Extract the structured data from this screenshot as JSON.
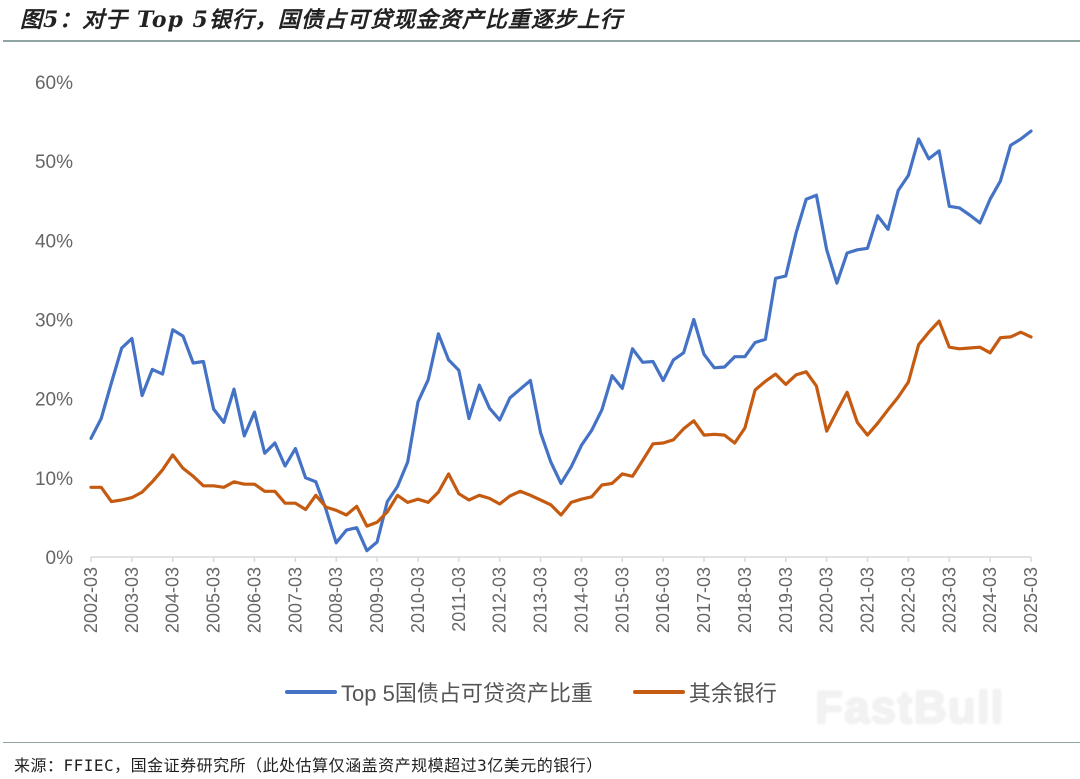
{
  "title": "图5：对于 Top 5银行，国债占可贷现金资产比重逐步上行",
  "source": "来源：FFIEC，国金证券研究所（此处估算仅涵盖资产规模超过3亿美元的银行）",
  "watermark": "FastBull",
  "colors": {
    "top5": "#4472c4",
    "others": "#c55a11",
    "axis": "#d9d9d9",
    "rule": "#8fa5a3"
  },
  "legend": [
    {
      "label": "Top 5国债占可贷资产比重",
      "color": "#4472c4"
    },
    {
      "label": "其余银行",
      "color": "#c55a11"
    }
  ],
  "chart_data": {
    "type": "line",
    "title": "图5：对于 Top 5银行，国债占可贷现金资产比重逐步上行",
    "xlabel": "",
    "ylabel": "",
    "ylim": [
      0,
      60
    ],
    "yticks": [
      "0%",
      "10%",
      "20%",
      "30%",
      "40%",
      "50%",
      "60%"
    ],
    "xtick_labels": [
      "2002-03",
      "2003-03",
      "2004-03",
      "2005-03",
      "2006-03",
      "2007-03",
      "2008-03",
      "2009-03",
      "2010-03",
      "2011-03",
      "2012-03",
      "2013-03",
      "2014-03",
      "2015-03",
      "2016-03",
      "2017-03",
      "2018-03",
      "2019-03",
      "2020-03",
      "2021-03",
      "2022-03",
      "2023-03",
      "2024-03",
      "2025-03"
    ],
    "x_frequency": "quarterly, 2002-03 to 2025-03 (93 points)",
    "grid": false,
    "legend_position": "bottom",
    "series": [
      {
        "name": "Top 5国债占可贷资产比重",
        "color": "#4472c4",
        "values": [
          15.0,
          17.5,
          22.0,
          26.4,
          27.6,
          20.4,
          23.7,
          23.1,
          28.7,
          27.9,
          24.5,
          24.7,
          18.7,
          17.0,
          21.2,
          15.3,
          18.3,
          13.1,
          14.4,
          11.5,
          13.7,
          10.0,
          9.5,
          6.0,
          1.8,
          3.4,
          3.7,
          0.8,
          1.9,
          7.0,
          8.9,
          12.0,
          19.6,
          22.4,
          28.2,
          24.9,
          23.6,
          17.5,
          21.7,
          18.8,
          17.3,
          20.1,
          21.2,
          22.3,
          15.7,
          12.0,
          9.3,
          11.4,
          14.1,
          16.0,
          18.6,
          22.9,
          21.3,
          26.3,
          24.6,
          24.7,
          22.3,
          24.9,
          25.8,
          30.0,
          25.6,
          23.9,
          24.0,
          25.3,
          25.3,
          27.1,
          27.5,
          35.2,
          35.5,
          40.9,
          45.2,
          45.7,
          38.8,
          34.6,
          38.4,
          38.8,
          39.0,
          43.1,
          41.4,
          46.3,
          48.2,
          52.8,
          50.3,
          51.3,
          44.3,
          44.1,
          43.2,
          42.2,
          45.2,
          47.5,
          52.0,
          52.8,
          53.8
        ]
      },
      {
        "name": "其余银行",
        "color": "#c55a11",
        "values": [
          8.8,
          8.8,
          7.0,
          7.2,
          7.5,
          8.2,
          9.5,
          11.0,
          12.9,
          11.2,
          10.2,
          9.0,
          9.0,
          8.8,
          9.5,
          9.2,
          9.2,
          8.3,
          8.3,
          6.8,
          6.8,
          6.0,
          7.8,
          6.3,
          5.9,
          5.3,
          6.4,
          3.9,
          4.4,
          5.7,
          7.8,
          6.9,
          7.3,
          6.9,
          8.2,
          10.5,
          8.0,
          7.2,
          7.8,
          7.4,
          6.7,
          7.7,
          8.3,
          7.8,
          7.2,
          6.6,
          5.3,
          6.9,
          7.3,
          7.6,
          9.1,
          9.3,
          10.5,
          10.2,
          12.2,
          14.3,
          14.4,
          14.8,
          16.2,
          17.2,
          15.4,
          15.5,
          15.4,
          14.4,
          16.3,
          21.1,
          22.2,
          23.1,
          21.8,
          23.0,
          23.4,
          21.6,
          15.9,
          18.4,
          20.8,
          17.0,
          15.4,
          16.9,
          18.6,
          20.2,
          22.1,
          26.8,
          28.4,
          29.8,
          26.5,
          26.3,
          26.4,
          26.5,
          25.8,
          27.7,
          27.8,
          28.4,
          27.8
        ]
      }
    ]
  }
}
